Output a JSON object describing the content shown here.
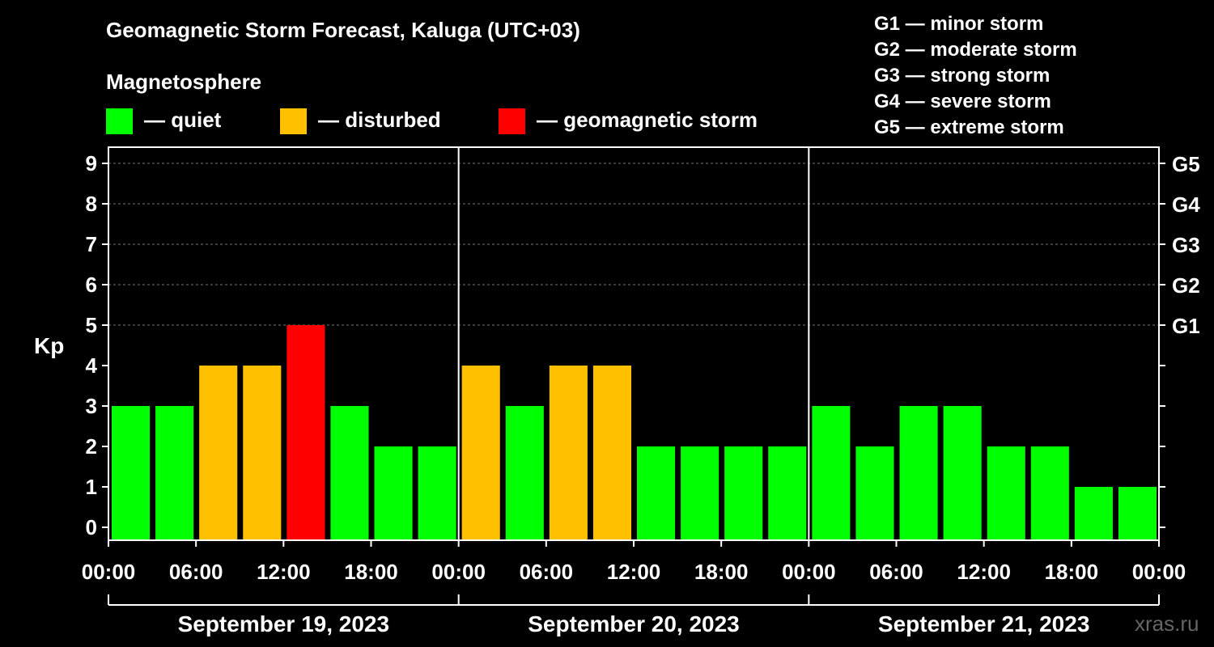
{
  "title": "Geomagnetic Storm Forecast, Kaluga (UTC+03)",
  "magnetosphere_label": "Magnetosphere",
  "legend": [
    {
      "label": "— quiet",
      "color": "#00ff00"
    },
    {
      "label": "— disturbed",
      "color": "#ffc000"
    },
    {
      "label": "— geomagnetic storm",
      "color": "#ff0000"
    }
  ],
  "g_scale": [
    "G1 — minor storm",
    "G2 — moderate storm",
    "G3 — strong storm",
    "G4 — severe storm",
    "G5 — extreme storm"
  ],
  "credit": "xras.ru",
  "chart_data": {
    "type": "bar",
    "ylabel": "Kp",
    "ylim": [
      0,
      9
    ],
    "yticks": [
      0,
      1,
      2,
      3,
      4,
      5,
      6,
      7,
      8,
      9
    ],
    "right_ticks": [
      {
        "kp": 5,
        "label": "G1"
      },
      {
        "kp": 6,
        "label": "G2"
      },
      {
        "kp": 7,
        "label": "G3"
      },
      {
        "kp": 8,
        "label": "G4"
      },
      {
        "kp": 9,
        "label": "G5"
      }
    ],
    "x_tick_labels": [
      "00:00",
      "06:00",
      "12:00",
      "18:00",
      "00:00",
      "06:00",
      "12:00",
      "18:00",
      "00:00",
      "06:00",
      "12:00",
      "18:00",
      "00:00"
    ],
    "days": [
      "September 19, 2023",
      "September 20, 2023",
      "September 21, 2023"
    ],
    "interval_hours": 3,
    "values": [
      3,
      3,
      4,
      4,
      5,
      3,
      2,
      2,
      4,
      3,
      4,
      4,
      2,
      2,
      2,
      2,
      3,
      2,
      3,
      3,
      2,
      2,
      1,
      1
    ],
    "thresholds": {
      "disturbed": 4,
      "storm": 5
    },
    "colors": {
      "quiet": "#00ff00",
      "disturbed": "#ffc000",
      "storm": "#ff0000"
    }
  }
}
